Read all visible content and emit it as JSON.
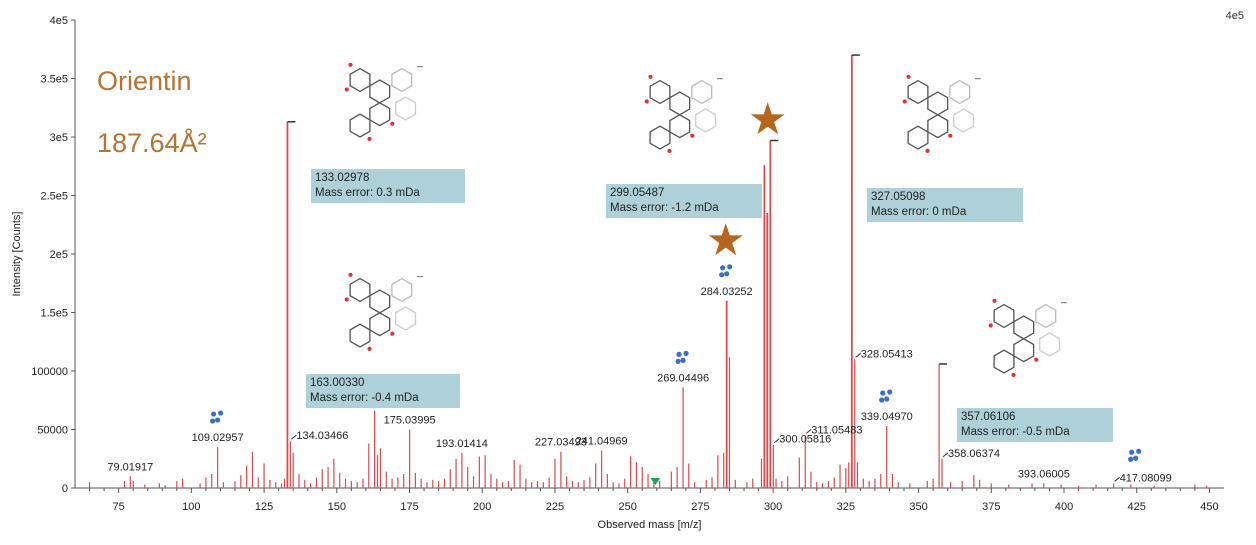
{
  "compound": "Orientin",
  "ccs": "187.64Å²",
  "corner_label": "4e5",
  "chart_data": {
    "type": "bar",
    "xlabel": "Observed mass [m/z]",
    "ylabel": "Intensity [Counts]",
    "xlim": [
      60,
      455
    ],
    "ylim": [
      0,
      400000
    ],
    "x_ticks": [
      75,
      100,
      125,
      150,
      175,
      200,
      225,
      250,
      275,
      300,
      325,
      350,
      375,
      400,
      425,
      450
    ],
    "y_ticks": [
      {
        "v": 0,
        "label": "0"
      },
      {
        "v": 50000,
        "label": "50000"
      },
      {
        "v": 100000,
        "label": "100000"
      },
      {
        "v": 150000,
        "label": "1.5e5"
      },
      {
        "v": 200000,
        "label": "2e5"
      },
      {
        "v": 250000,
        "label": "2.5e5"
      },
      {
        "v": 300000,
        "label": "3e5"
      },
      {
        "v": 350000,
        "label": "3.5e5"
      },
      {
        "v": 400000,
        "label": "4e5"
      }
    ],
    "peaks": [
      [
        65,
        5000
      ],
      [
        77,
        6000
      ],
      [
        79.02,
        10000
      ],
      [
        80,
        6000
      ],
      [
        84,
        3000
      ],
      [
        89,
        4000
      ],
      [
        91,
        2500
      ],
      [
        95,
        6000
      ],
      [
        97,
        8000
      ],
      [
        103,
        4000
      ],
      [
        105,
        9000
      ],
      [
        107,
        12000
      ],
      [
        109.03,
        35000
      ],
      [
        111,
        5000
      ],
      [
        115,
        6000
      ],
      [
        117,
        11000
      ],
      [
        119,
        19000
      ],
      [
        121,
        31000
      ],
      [
        123,
        9000
      ],
      [
        125,
        21000
      ],
      [
        127,
        7000
      ],
      [
        129,
        5000
      ],
      [
        131,
        4000
      ],
      [
        132,
        8000
      ],
      [
        133.03,
        313000
      ],
      [
        134.03,
        40000
      ],
      [
        135,
        30000
      ],
      [
        137,
        12000
      ],
      [
        139,
        7000
      ],
      [
        141,
        4000
      ],
      [
        143,
        9000
      ],
      [
        145,
        16000
      ],
      [
        147,
        18000
      ],
      [
        149,
        25000
      ],
      [
        151,
        13000
      ],
      [
        153,
        8000
      ],
      [
        155,
        6000
      ],
      [
        157,
        5000
      ],
      [
        159,
        8000
      ],
      [
        161,
        38000
      ],
      [
        163,
        66000
      ],
      [
        164,
        28000
      ],
      [
        165,
        34000
      ],
      [
        167,
        14000
      ],
      [
        169,
        8000
      ],
      [
        171,
        9000
      ],
      [
        173,
        12000
      ],
      [
        175.04,
        50000
      ],
      [
        177,
        13000
      ],
      [
        179,
        8000
      ],
      [
        181,
        5000
      ],
      [
        183,
        7000
      ],
      [
        185,
        6000
      ],
      [
        187,
        8000
      ],
      [
        189,
        16000
      ],
      [
        191,
        25000
      ],
      [
        193.01,
        30000
      ],
      [
        195,
        18000
      ],
      [
        197,
        10000
      ],
      [
        199,
        27000
      ],
      [
        201,
        28000
      ],
      [
        203,
        12000
      ],
      [
        205,
        8000
      ],
      [
        207,
        5000
      ],
      [
        209,
        6000
      ],
      [
        211,
        24000
      ],
      [
        213,
        20000
      ],
      [
        215,
        8000
      ],
      [
        217,
        5000
      ],
      [
        219,
        6000
      ],
      [
        221,
        5000
      ],
      [
        223,
        9000
      ],
      [
        225,
        25000
      ],
      [
        227.03,
        31000
      ],
      [
        229,
        10000
      ],
      [
        231,
        6000
      ],
      [
        233,
        5000
      ],
      [
        235,
        7000
      ],
      [
        237,
        9000
      ],
      [
        239,
        21000
      ],
      [
        241.05,
        32000
      ],
      [
        243,
        12000
      ],
      [
        245,
        5000
      ],
      [
        247,
        4000
      ],
      [
        249,
        8000
      ],
      [
        251,
        27000
      ],
      [
        253,
        22000
      ],
      [
        255,
        18000
      ],
      [
        257,
        12000
      ],
      [
        259,
        8000
      ],
      [
        261,
        6000
      ],
      [
        265,
        14000
      ],
      [
        267,
        18000
      ],
      [
        269.04,
        86000
      ],
      [
        271,
        21000
      ],
      [
        273,
        5000
      ],
      [
        277,
        7000
      ],
      [
        279,
        9000
      ],
      [
        281,
        28000
      ],
      [
        283,
        30000
      ],
      [
        284.03,
        160000
      ],
      [
        285,
        112000
      ],
      [
        287,
        7000
      ],
      [
        291,
        5000
      ],
      [
        293,
        8000
      ],
      [
        296,
        25000
      ],
      [
        297,
        276000
      ],
      [
        298,
        235000
      ],
      [
        299.05,
        297000
      ],
      [
        300.06,
        37000
      ],
      [
        301,
        8000
      ],
      [
        303,
        6000
      ],
      [
        305,
        10000
      ],
      [
        309,
        26000
      ],
      [
        311.05,
        45000
      ],
      [
        313,
        14000
      ],
      [
        315,
        5000
      ],
      [
        317,
        4000
      ],
      [
        319,
        6000
      ],
      [
        321,
        9000
      ],
      [
        323,
        20000
      ],
      [
        325,
        17000
      ],
      [
        326,
        22000
      ],
      [
        327.05,
        370000
      ],
      [
        328.05,
        110000
      ],
      [
        329,
        22000
      ],
      [
        331,
        8000
      ],
      [
        333,
        6000
      ],
      [
        335,
        8000
      ],
      [
        337,
        12000
      ],
      [
        339.05,
        53000
      ],
      [
        341,
        12000
      ],
      [
        343,
        5000
      ],
      [
        347,
        4000
      ],
      [
        353,
        6000
      ],
      [
        355,
        8000
      ],
      [
        357.06,
        106000
      ],
      [
        358.06,
        25000
      ],
      [
        361,
        5000
      ],
      [
        365,
        6000
      ],
      [
        369,
        11000
      ],
      [
        371,
        7000
      ],
      [
        375,
        4000
      ],
      [
        381,
        3000
      ],
      [
        389,
        4000
      ],
      [
        393.06,
        4000
      ],
      [
        399,
        3000
      ],
      [
        405,
        2000
      ],
      [
        411,
        3000
      ],
      [
        417.08,
        4000
      ],
      [
        423,
        3000
      ],
      [
        431,
        2000
      ],
      [
        445,
        3000
      ],
      [
        449,
        2000
      ]
    ],
    "peak_labels": [
      {
        "x": 79.01917,
        "y": 10000,
        "label": "79.01917"
      },
      {
        "x": 109.02957,
        "y": 35000,
        "label": "109.02957"
      },
      {
        "x": 134.03466,
        "y": 40000,
        "label": "134.03466",
        "side": "right"
      },
      {
        "x": 175.03995,
        "y": 50000,
        "label": "175.03995"
      },
      {
        "x": 193.01414,
        "y": 30000,
        "label": "193.01414"
      },
      {
        "x": 227.03493,
        "y": 31000,
        "label": "227.03493"
      },
      {
        "x": 241.04969,
        "y": 32000,
        "label": "241.04969"
      },
      {
        "x": 269.04496,
        "y": 86000,
        "label": "269.04496"
      },
      {
        "x": 284.03252,
        "y": 160000,
        "label": "284.03252"
      },
      {
        "x": 300.05816,
        "y": 37000,
        "label": "300.05816",
        "side": "right"
      },
      {
        "x": 311.05483,
        "y": 45000,
        "label": "311.05483",
        "side": "right"
      },
      {
        "x": 328.05413,
        "y": 110000,
        "label": "328.05413",
        "side": "right"
      },
      {
        "x": 339.0497,
        "y": 53000,
        "label": "339.04970"
      },
      {
        "x": 358.06374,
        "y": 25000,
        "label": "358.06374",
        "side": "right"
      },
      {
        "x": 393.06005,
        "y": 4000,
        "label": "393.06005"
      },
      {
        "x": 417.08099,
        "y": 4000,
        "label": "417.08099",
        "side": "right"
      }
    ],
    "annotations": [
      {
        "mass": "133.02978",
        "error": "Mass error: 0.3 mDa"
      },
      {
        "mass": "163.00330",
        "error": "Mass error: -0.4 mDa"
      },
      {
        "mass": "299.05487",
        "error": "Mass error: -1.2 mDa"
      },
      {
        "mass": "327.05098",
        "error": "Mass error: 0 mDa"
      },
      {
        "mass": "357.06106",
        "error": "Mass error: -0.5 mDa"
      }
    ],
    "colors": {
      "peak": "#D94A4A",
      "axis": "#555555",
      "box": "#ADD0D9",
      "star": "#B5651D",
      "dots": "#3A6FC4",
      "title": "#B87333",
      "marker": "#22A355"
    }
  }
}
